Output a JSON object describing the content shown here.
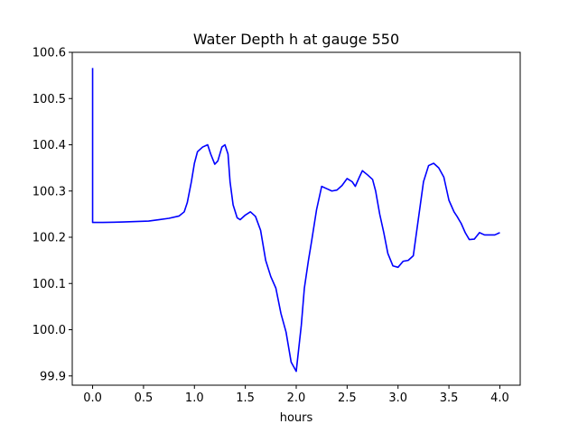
{
  "chart_data": {
    "type": "line",
    "title": "Water Depth h at gauge 550",
    "xlabel": "hours",
    "ylabel": "",
    "xlim": [
      -0.2,
      4.2
    ],
    "ylim": [
      99.88,
      100.6
    ],
    "grid": false,
    "legend": "none",
    "x_ticks": [
      {
        "value": 0.0,
        "label": "0.0"
      },
      {
        "value": 0.5,
        "label": "0.5"
      },
      {
        "value": 1.0,
        "label": "1.0"
      },
      {
        "value": 1.5,
        "label": "1.5"
      },
      {
        "value": 2.0,
        "label": "2.0"
      },
      {
        "value": 2.5,
        "label": "2.5"
      },
      {
        "value": 3.0,
        "label": "3.0"
      },
      {
        "value": 3.5,
        "label": "3.5"
      },
      {
        "value": 4.0,
        "label": "4.0"
      }
    ],
    "y_ticks": [
      {
        "value": 99.9,
        "label": "99.9"
      },
      {
        "value": 100.0,
        "label": "100.0"
      },
      {
        "value": 100.1,
        "label": "100.1"
      },
      {
        "value": 100.2,
        "label": "100.2"
      },
      {
        "value": 100.3,
        "label": "100.3"
      },
      {
        "value": 100.4,
        "label": "100.4"
      },
      {
        "value": 100.5,
        "label": "100.5"
      },
      {
        "value": 100.6,
        "label": "100.6"
      }
    ],
    "series": [
      {
        "color": "#0000ff",
        "x": [
          0.0,
          0.0,
          0.0,
          0.1,
          0.3,
          0.55,
          0.65,
          0.75,
          0.85,
          0.9,
          0.93,
          0.97,
          1.0,
          1.03,
          1.08,
          1.13,
          1.16,
          1.2,
          1.23,
          1.27,
          1.3,
          1.33,
          1.35,
          1.38,
          1.42,
          1.45,
          1.5,
          1.55,
          1.6,
          1.65,
          1.7,
          1.75,
          1.8,
          1.85,
          1.9,
          1.95,
          2.0,
          2.05,
          2.08,
          2.12,
          2.15,
          2.2,
          2.25,
          2.3,
          2.35,
          2.4,
          2.45,
          2.5,
          2.55,
          2.58,
          2.62,
          2.65,
          2.7,
          2.75,
          2.78,
          2.82,
          2.86,
          2.9,
          2.95,
          3.0,
          3.05,
          3.1,
          3.15,
          3.2,
          3.25,
          3.3,
          3.35,
          3.4,
          3.45,
          3.5,
          3.55,
          3.58,
          3.62,
          3.66,
          3.7,
          3.75,
          3.8,
          3.85,
          3.9,
          3.95,
          4.0
        ],
        "y": [
          100.566,
          100.4,
          100.232,
          100.232,
          100.233,
          100.235,
          100.238,
          100.241,
          100.246,
          100.255,
          100.275,
          100.32,
          100.36,
          100.385,
          100.395,
          100.4,
          100.38,
          100.358,
          100.365,
          100.395,
          100.4,
          100.38,
          100.32,
          100.27,
          100.242,
          100.238,
          100.248,
          100.255,
          100.245,
          100.215,
          100.15,
          100.115,
          100.09,
          100.035,
          99.995,
          99.93,
          99.91,
          100.01,
          100.09,
          100.15,
          100.19,
          100.26,
          100.31,
          100.305,
          100.3,
          100.302,
          100.312,
          100.327,
          100.32,
          100.31,
          100.33,
          100.344,
          100.335,
          100.325,
          100.3,
          100.25,
          100.21,
          100.165,
          100.138,
          100.135,
          100.148,
          100.15,
          100.16,
          100.24,
          100.32,
          100.355,
          100.36,
          100.35,
          100.33,
          100.28,
          100.255,
          100.245,
          100.23,
          100.21,
          100.195,
          100.196,
          100.21,
          100.205,
          100.205,
          100.205,
          100.21
        ]
      }
    ]
  }
}
